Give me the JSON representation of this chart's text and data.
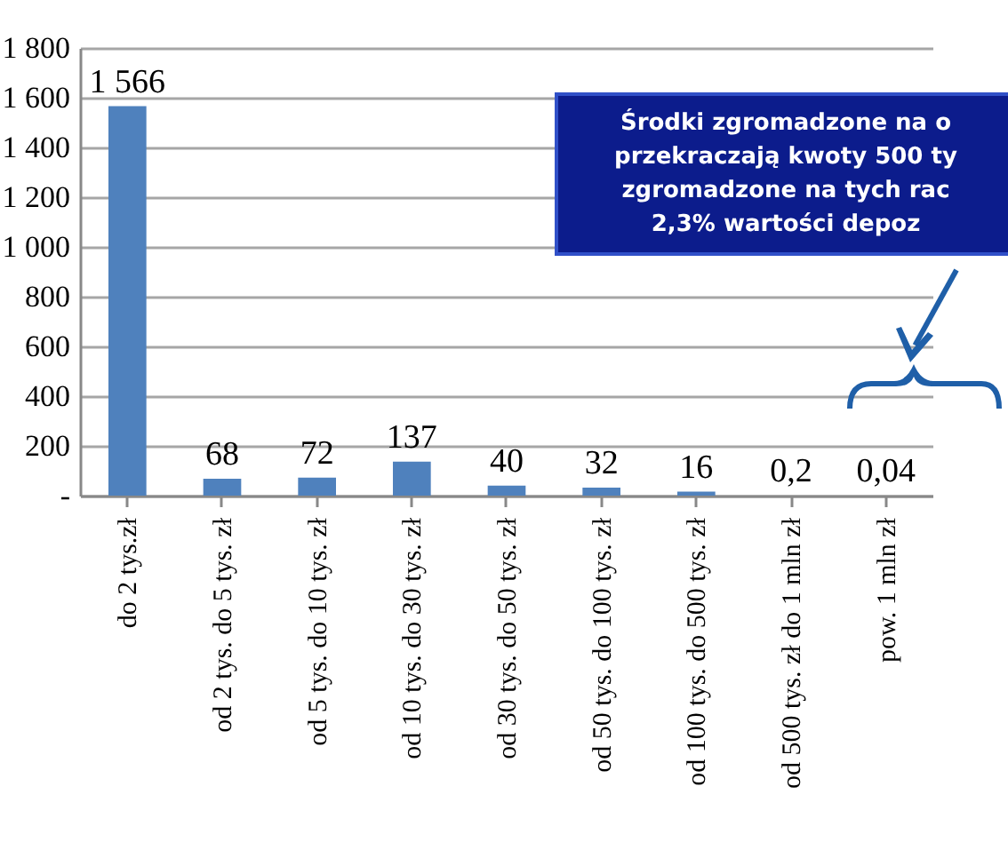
{
  "chart_data": {
    "type": "bar",
    "categories": [
      "do 2 tys.zł",
      "od 2 tys. do 5 tys. zł",
      "od 5 tys. do 10 tys. zł",
      "od 10 tys. do 30 tys. zł",
      "od 30 tys. do 50 tys. zł",
      "od 50 tys. do 100 tys. zł",
      "od 100 tys. do 500 tys. zł",
      "od 500 tys. zł do 1 mln zł",
      "pow. 1 mln zł"
    ],
    "values": [
      1566,
      68,
      72,
      137,
      40,
      32,
      16,
      0.2,
      0.04
    ],
    "value_labels": [
      "1 566",
      "68",
      "72",
      "137",
      "40",
      "32",
      "16",
      "0,2",
      "0,04"
    ],
    "color": "#4f81bd",
    "ylim": [
      0,
      1800
    ],
    "yticks": [
      {
        "value": 0,
        "label": "-"
      },
      {
        "value": 200,
        "label": "200"
      },
      {
        "value": 400,
        "label": "400"
      },
      {
        "value": 600,
        "label": "600"
      },
      {
        "value": 800,
        "label": "800"
      },
      {
        "value": 1000,
        "label": "1 000"
      },
      {
        "value": 1200,
        "label": "1 200"
      },
      {
        "value": 1400,
        "label": "1 400"
      },
      {
        "value": 1600,
        "label": "1 600"
      },
      {
        "value": 1800,
        "label": "1 800"
      }
    ],
    "grid": "y",
    "annotations": [
      "Środki zgromadzone na o\nprzekraczają kwoty 500 ty\nzgromadzone na tych rac\n2,3% wartości depoz"
    ]
  }
}
